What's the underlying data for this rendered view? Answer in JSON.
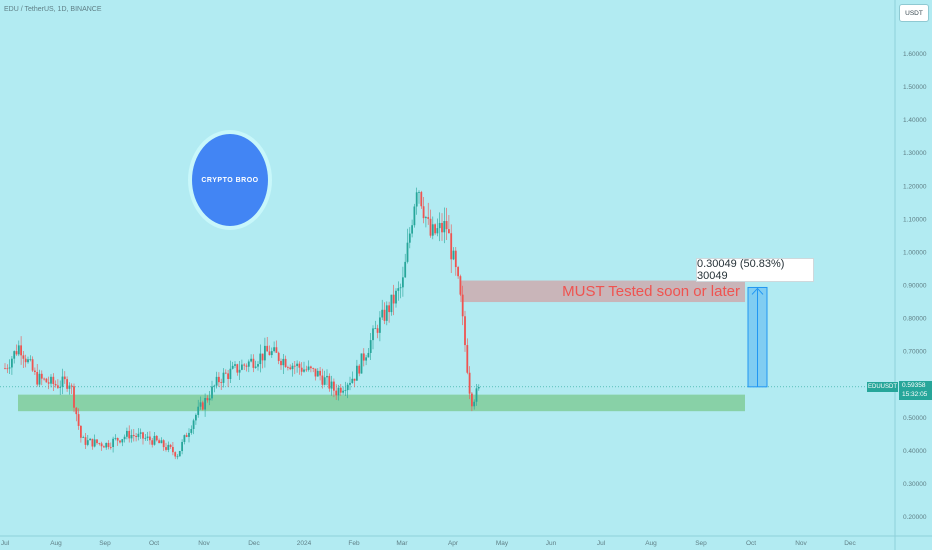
{
  "header": {
    "symbol_title": "EDU / TetherUS, 1D, BINANCE",
    "currency": "USDT"
  },
  "logo": {
    "text": "CRYPTO BROO"
  },
  "annotations": {
    "resistance_label": "MUST Tested soon or later",
    "measure_label": "0.30049 (50.83%) 30049"
  },
  "price_badge": {
    "symbol": "EDUUSDT",
    "price": "0.59358",
    "countdown": "15:32:05"
  },
  "colors": {
    "background": "#b2ebf2",
    "up": "#26a69a",
    "down": "#ef5350",
    "support_zone": "#66bb6a",
    "resistance_zone": "#e57373",
    "measure": "#2196f3"
  },
  "chart_data": {
    "type": "candlestick",
    "y_axis": {
      "ticks": [
        "1.60000",
        "1.50000",
        "1.40000",
        "1.30000",
        "1.20000",
        "1.10000",
        "1.00000",
        "0.90000",
        "0.80000",
        "0.70000",
        "0.60000",
        "0.50000",
        "0.40000",
        "0.30000",
        "0.20000"
      ],
      "range": [
        0.16,
        1.7
      ]
    },
    "x_axis": {
      "ticks": [
        "Jul",
        "Aug",
        "Sep",
        "Oct",
        "Nov",
        "Dec",
        "2024",
        "Feb",
        "Mar",
        "Apr",
        "May",
        "Jun",
        "Jul",
        "Aug",
        "Sep",
        "Oct",
        "Nov",
        "Dec"
      ]
    },
    "last_price": 0.59358,
    "zones": [
      {
        "name": "support",
        "low": 0.52,
        "high": 0.57
      },
      {
        "name": "resistance",
        "low": 0.85,
        "high": 0.915
      }
    ],
    "measure": {
      "from": 0.59358,
      "to": 0.89407,
      "change": 0.30049,
      "percent": 50.83
    },
    "close_path": [
      [
        "2023-07-01",
        0.65
      ],
      [
        "2023-07-10",
        0.72
      ],
      [
        "2023-07-20",
        0.62
      ],
      [
        "2023-08-01",
        0.6
      ],
      [
        "2023-08-10",
        0.61
      ],
      [
        "2023-08-17",
        0.43
      ],
      [
        "2023-09-01",
        0.42
      ],
      [
        "2023-09-15",
        0.45
      ],
      [
        "2023-10-01",
        0.43
      ],
      [
        "2023-10-15",
        0.39
      ],
      [
        "2023-10-25",
        0.5
      ],
      [
        "2023-11-10",
        0.62
      ],
      [
        "2023-11-25",
        0.66
      ],
      [
        "2023-12-10",
        0.7
      ],
      [
        "2023-12-25",
        0.66
      ],
      [
        "2024-01-10",
        0.63
      ],
      [
        "2024-01-20",
        0.58
      ],
      [
        "2024-02-01",
        0.63
      ],
      [
        "2024-02-15",
        0.78
      ],
      [
        "2024-03-01",
        0.9
      ],
      [
        "2024-03-10",
        1.22
      ],
      [
        "2024-03-18",
        1.05
      ],
      [
        "2024-03-28",
        1.08
      ],
      [
        "2024-04-05",
        0.88
      ],
      [
        "2024-04-12",
        0.55
      ],
      [
        "2024-04-18",
        0.59
      ]
    ]
  }
}
